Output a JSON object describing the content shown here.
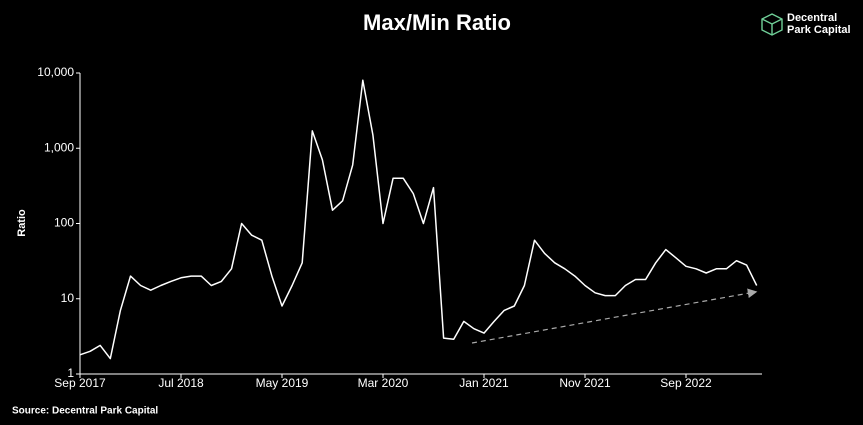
{
  "chart_data": {
    "type": "line",
    "title": "Max/Min Ratio",
    "y_label": "Ratio",
    "source": "Source: Decentral Park Capital",
    "logo": [
      "Decentral",
      "Park Capital"
    ],
    "x": [
      "2017-09",
      "2017-10",
      "2017-11",
      "2017-12",
      "2018-01",
      "2018-02",
      "2018-03",
      "2018-04",
      "2018-05",
      "2018-06",
      "2018-07",
      "2018-08",
      "2018-09",
      "2018-10",
      "2018-11",
      "2018-12",
      "2019-01",
      "2019-02",
      "2019-03",
      "2019-04",
      "2019-05",
      "2019-06",
      "2019-07",
      "2019-08",
      "2019-09",
      "2019-10",
      "2019-11",
      "2019-12",
      "2020-01",
      "2020-02",
      "2020-03",
      "2020-04",
      "2020-05",
      "2020-06",
      "2020-07",
      "2020-08",
      "2020-09",
      "2020-10",
      "2020-11",
      "2020-12",
      "2021-01",
      "2021-02",
      "2021-03",
      "2021-04",
      "2021-05",
      "2021-06",
      "2021-07",
      "2021-08",
      "2021-09",
      "2021-10",
      "2021-11",
      "2021-12",
      "2022-01",
      "2022-02",
      "2022-03",
      "2022-04",
      "2022-05",
      "2022-06",
      "2022-07",
      "2022-08",
      "2022-09",
      "2022-10",
      "2022-11",
      "2022-12",
      "2023-01",
      "2023-02",
      "2023-03",
      "2023-04"
    ],
    "values": [
      1.8,
      2.0,
      2.4,
      1.6,
      7,
      20,
      15,
      13,
      15,
      17,
      19,
      20,
      20,
      15,
      17,
      25,
      100,
      70,
      60,
      20,
      8,
      15,
      30,
      1700,
      700,
      150,
      200,
      600,
      8000,
      1500,
      100,
      400,
      400,
      250,
      100,
      300,
      3,
      2.9,
      5,
      4,
      3.5,
      5,
      7,
      8,
      15,
      60,
      40,
      30,
      25,
      20,
      15,
      12,
      11,
      11,
      15,
      18,
      18,
      30,
      45,
      35,
      27,
      25,
      22,
      25,
      25,
      32,
      28,
      15
    ],
    "color": "#ffffff",
    "log": true,
    "ylim": [
      1,
      10000
    ],
    "yticks": [
      1,
      10,
      100,
      {
        "value": 1000,
        "label": "1,000"
      },
      {
        "value": 10000,
        "label": "10,000"
      }
    ],
    "xticks": [
      {
        "value": "2017-09",
        "label": "Sep 2017"
      },
      {
        "value": "2018-07",
        "label": "Jul 2018"
      },
      {
        "value": "2019-05",
        "label": "May 2019"
      },
      {
        "value": "2020-03",
        "label": "Mar 2020"
      },
      {
        "value": "2021-01",
        "label": "Jan 2021"
      },
      {
        "value": "2021-11",
        "label": "Nov 2021"
      },
      {
        "value": "2022-09",
        "label": "Sep 2022"
      }
    ]
  }
}
